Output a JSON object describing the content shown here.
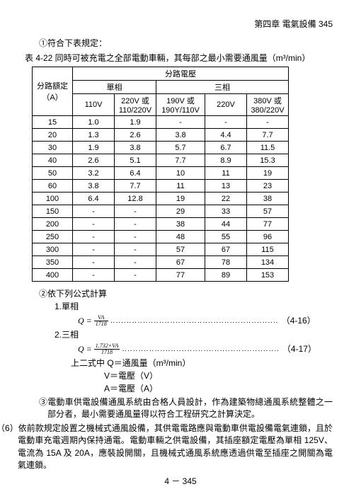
{
  "header": {
    "chapter": "第四章 電氣設備  345"
  },
  "point1": "①符合下表規定：",
  "table": {
    "caption": "表 4-22 同時可被充電之全部電動車輛，其每部之最小需要通風量（m³/min）",
    "group_top": "分路電壓",
    "col_rating_l1": "分路額定",
    "col_rating_l2": "（A）",
    "group_single": "單相",
    "group_three": "三相",
    "col_110": "110V",
    "col_220_l1": "220V 或",
    "col_220_l2": "110/220V",
    "col_190_l1": "190V 或",
    "col_190_l2": "190Y/110V",
    "col_220b": "220V",
    "col_380_l1": "380V 或",
    "col_380_l2": "380/220V",
    "rows": [
      {
        "a": "15",
        "c1": "1.0",
        "c2": "1.9",
        "c3": "-",
        "c4": "-",
        "c5": "-"
      },
      {
        "a": "20",
        "c1": "1.3",
        "c2": "2.6",
        "c3": "3.8",
        "c4": "4.4",
        "c5": "7.7"
      },
      {
        "a": "30",
        "c1": "1.9",
        "c2": "3.8",
        "c3": "5.7",
        "c4": "6.7",
        "c5": "11.5"
      },
      {
        "a": "40",
        "c1": "2.6",
        "c2": "5.1",
        "c3": "7.7",
        "c4": "8.9",
        "c5": "15.3"
      },
      {
        "a": "50",
        "c1": "3.2",
        "c2": "6.4",
        "c3": "10",
        "c4": "11",
        "c5": "19"
      },
      {
        "a": "60",
        "c1": "3.8",
        "c2": "7.7",
        "c3": "11",
        "c4": "13",
        "c5": "23"
      },
      {
        "a": "100",
        "c1": "6.4",
        "c2": "12.8",
        "c3": "19",
        "c4": "22",
        "c5": "38"
      },
      {
        "a": "150",
        "c1": "-",
        "c2": "-",
        "c3": "29",
        "c4": "33",
        "c5": "57"
      },
      {
        "a": "200",
        "c1": "-",
        "c2": "-",
        "c3": "38",
        "c4": "44",
        "c5": "77"
      },
      {
        "a": "250",
        "c1": "-",
        "c2": "-",
        "c3": "48",
        "c4": "55",
        "c5": "96"
      },
      {
        "a": "300",
        "c1": "-",
        "c2": "-",
        "c3": "57",
        "c4": "67",
        "c5": "115"
      },
      {
        "a": "350",
        "c1": "-",
        "c2": "-",
        "c3": "67",
        "c4": "78",
        "c5": "134"
      },
      {
        "a": "400",
        "c1": "-",
        "c2": "-",
        "c3": "77",
        "c4": "89",
        "c5": "153"
      }
    ]
  },
  "point2": "②依下列公式計算",
  "sub1": "1.單相",
  "formula1": {
    "num": "VA",
    "den": "1718",
    "eqnum": "（4-16）"
  },
  "sub2": "2.三相",
  "formula2": {
    "num": "1.732×VA",
    "den": "1718",
    "eqnum": "（4-17）"
  },
  "legend_intro": "上二式中  Q＝通風量（m³/min）",
  "legend_v": "V＝電壓（V）",
  "legend_a": "A＝電壓（A）",
  "point3": "③電動車供電設備通風系統由合格人員設計，作為建築物總通風系統整體之一部分者，最小需要通風量得以符合工程研究之計算決定。",
  "point6": "（6）依前款規定設置之機械式通風設備，其供電電路應與電動車供電設備電氣連鎖，且於電動車充電週期內保持通電。電動車輛之供電設備，其插座額定電壓為單相 125V、電流為 15A 及 20A，應裝設開關，且機械式通風系統應透過供電至插座之開關為電氣連鎖。",
  "footer": "4  －  345"
}
